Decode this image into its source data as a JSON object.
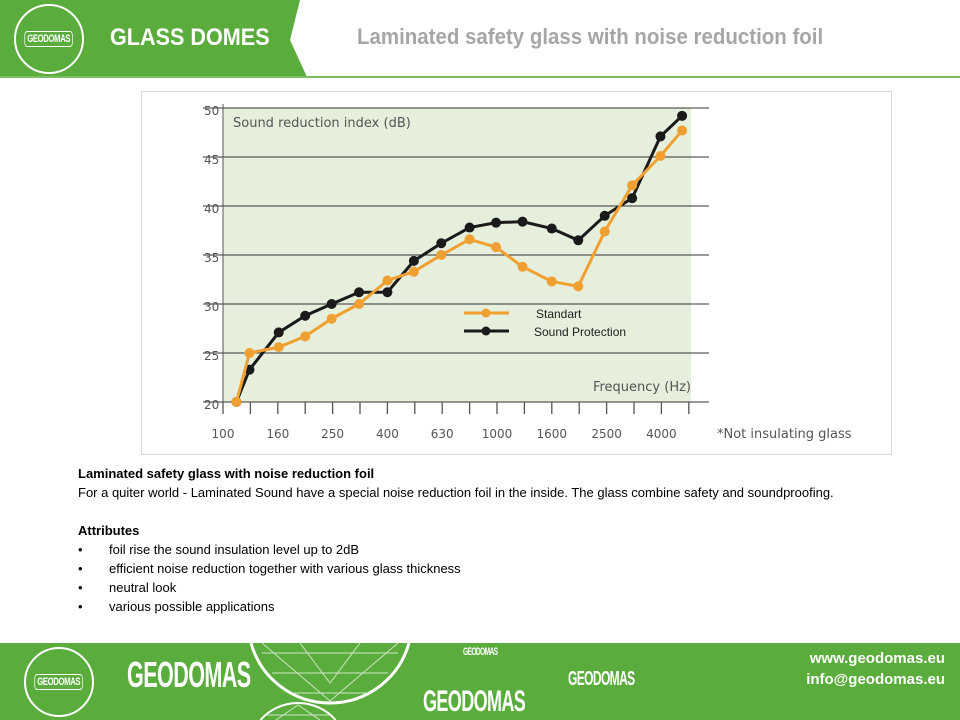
{
  "header": {
    "logo_text": "GEODOMAS",
    "brand": "GLASS DOMES",
    "title": "Laminated safety glass with noise reduction foil"
  },
  "colors": {
    "brand_green": "#5aac3c",
    "standart": "#f0a030",
    "sound_protection": "#1a1a1a",
    "plot_bg": "#e6eedc"
  },
  "chart_data": {
    "type": "line",
    "ylabel": "Sound reduction index (dB)",
    "xlabel": "Frequency (Hz)",
    "x_scale": "log",
    "ylim": [
      20,
      50
    ],
    "yticks": [
      20,
      25,
      30,
      35,
      40,
      45,
      50
    ],
    "xtick_labels": [
      "100",
      "160",
      "250",
      "400",
      "630",
      "1000",
      "1600",
      "2500",
      "4000"
    ],
    "xlim": [
      100,
      5000
    ],
    "grid": "horizontal",
    "legend_position": "center-right",
    "note": "*Not insulating glass",
    "x": [
      112,
      125,
      160,
      200,
      250,
      315,
      400,
      500,
      630,
      800,
      1000,
      1250,
      1600,
      2000,
      2500,
      3150,
      4000,
      4800
    ],
    "series": [
      {
        "name": "Standart",
        "color": "#f0a030",
        "values": [
          20,
          25,
          25.6,
          26.7,
          28.5,
          30,
          32.4,
          33.3,
          35,
          36.6,
          35.8,
          33.8,
          32.3,
          31.8,
          37.4,
          42.1,
          45.1,
          47.7
        ]
      },
      {
        "name": "Sound Protection",
        "color": "#1a1a1a",
        "values": [
          20,
          23.3,
          27.1,
          28.8,
          30,
          31.2,
          31.2,
          34.4,
          36.2,
          37.8,
          38.3,
          38.4,
          37.7,
          36.5,
          39,
          40.8,
          47.1,
          49.2
        ]
      }
    ]
  },
  "description": {
    "heading": "Laminated safety glass with noise reduction foil",
    "body": "For a quiter world - Laminated  Sound have a special noise reduction foil in the inside. The glass combine safety and soundproofing.",
    "attributes_heading": "Attributes",
    "attributes": [
      "foil rise the sound insulation level up to 2dB",
      "efficient noise reduction  together with various glass thickness",
      "neutral look",
      "various possible applications"
    ]
  },
  "footer": {
    "logo_text": "GEODOMAS",
    "wordmark": "GEODOMAS",
    "website": "www.geodomas.eu",
    "email": "info@geodomas.eu"
  }
}
